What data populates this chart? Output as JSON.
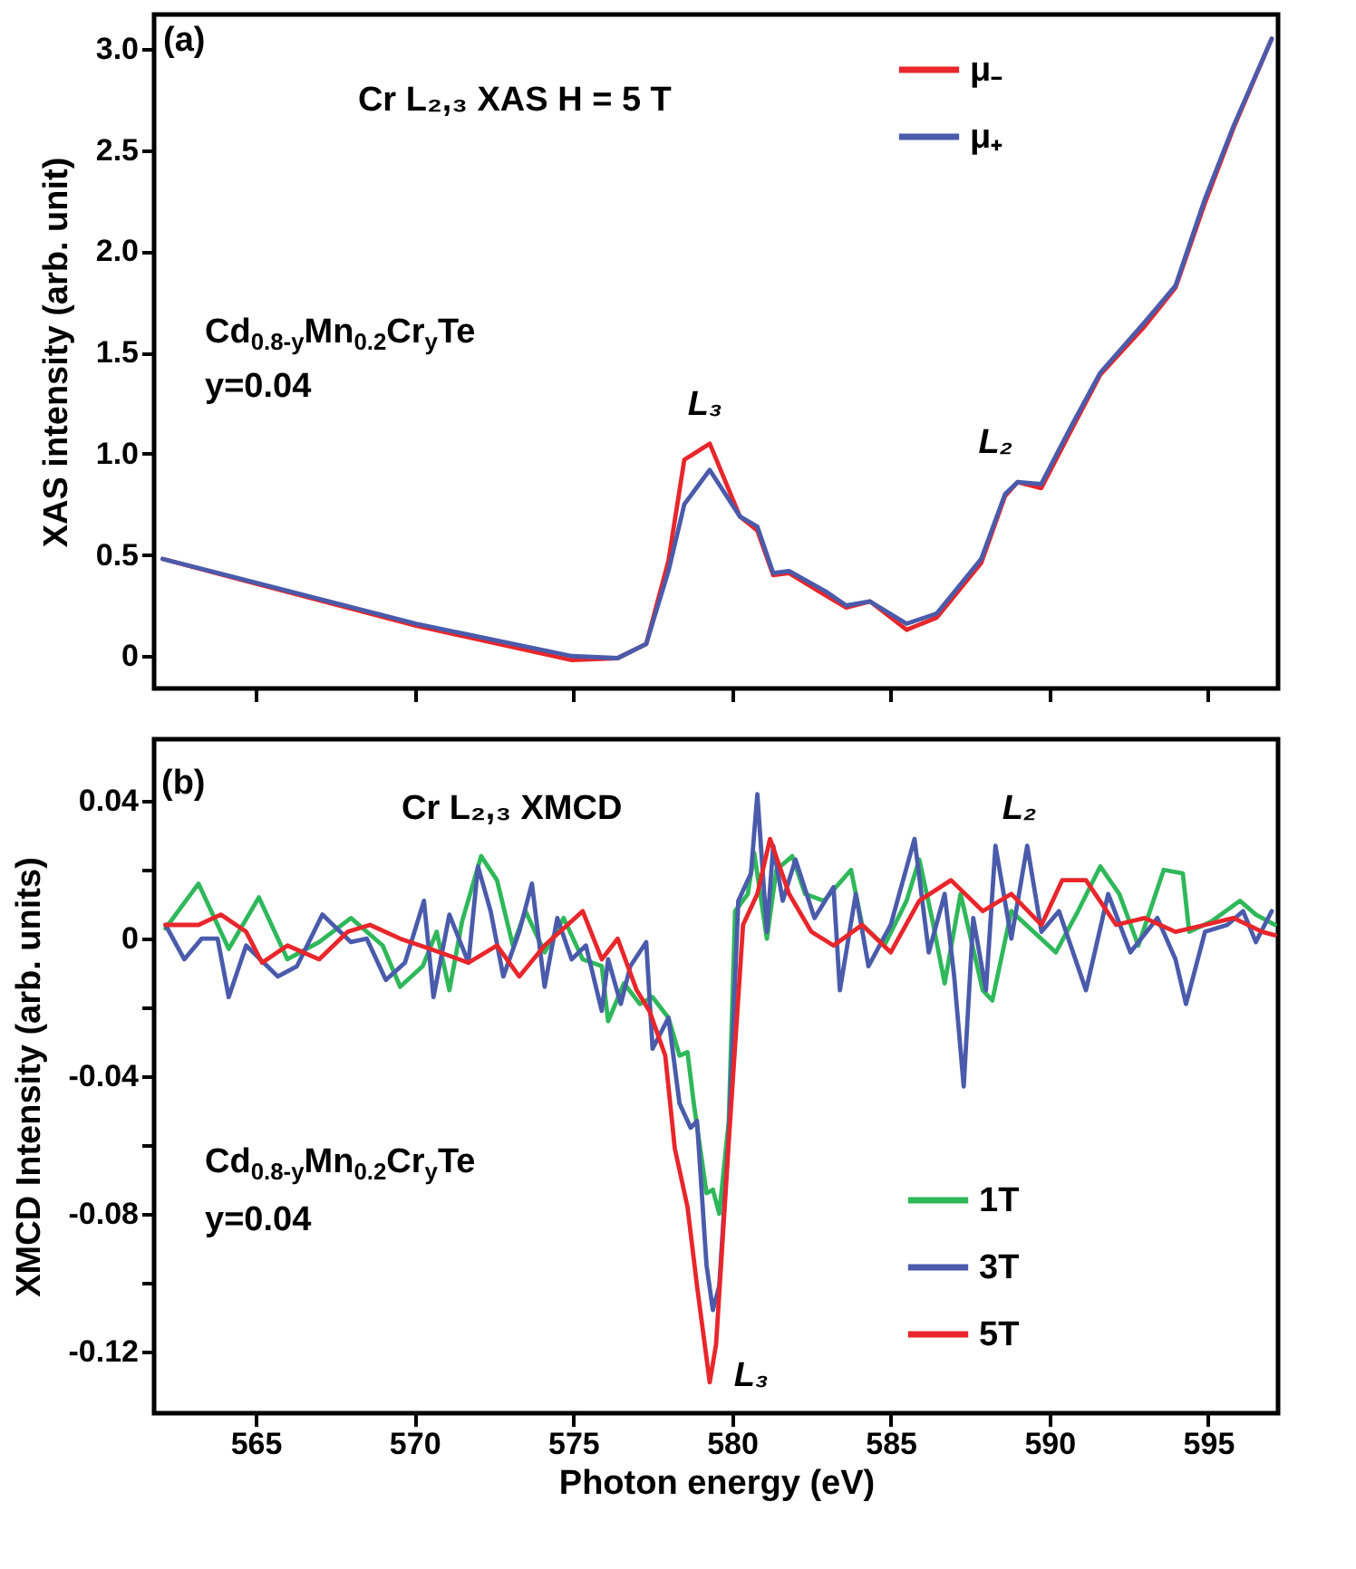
{
  "chart_data": [
    {
      "type": "line",
      "ylabel": "XAS intensity (arb. unit)",
      "xlim": [
        561.8,
        597.2
      ],
      "ylim": [
        -0.16,
        3.17
      ],
      "xticks": [
        565,
        570,
        575,
        580,
        585,
        590,
        595
      ],
      "yticks": [
        0,
        0.5,
        {
          "value": 1,
          "label": "1.0"
        },
        1.5,
        {
          "value": 2,
          "label": "2.0"
        },
        2.5,
        {
          "value": 3,
          "label": "3.0"
        }
      ],
      "tick_labels": "y",
      "legend": "top right",
      "annotations": [
        "(a)",
        "Cr L₂,₃ XAS    H = 5 T",
        "Cd$_{0.8-y}$Mn$_{0.2}$Cr$_{y}$Te",
        "y=0.04",
        {
          "text": "L₃",
          "x": 579.3,
          "y": 1.05
        },
        {
          "text": "L₂",
          "x": 588.8,
          "y": 0.86
        }
      ],
      "series": [
        {
          "name": "μ₋",
          "color": "#e8262b",
          "x": [
            562.07,
            570.05,
            574.96,
            576.4,
            577.3,
            578.0,
            578.5,
            579.3,
            580.25,
            580.8,
            581.3,
            581.8,
            582.95,
            583.6,
            584.35,
            585.5,
            586.45,
            587.85,
            588.6,
            589.0,
            589.74,
            590.7,
            591.6,
            593.0,
            593.97,
            594.9,
            595.8,
            597.0
          ],
          "values": [
            0.48,
            0.15,
            -0.02,
            -0.01,
            0.06,
            0.47,
            0.97,
            1.05,
            0.69,
            0.62,
            0.4,
            0.41,
            0.3,
            0.24,
            0.27,
            0.13,
            0.19,
            0.46,
            0.79,
            0.86,
            0.83,
            1.12,
            1.39,
            1.63,
            1.82,
            2.24,
            2.61,
            3.05
          ]
        },
        {
          "name": "μ₊",
          "color": "#4a5bab",
          "x": [
            562.07,
            570.05,
            574.96,
            576.4,
            577.3,
            578.0,
            578.5,
            579.3,
            580.25,
            580.8,
            581.3,
            581.8,
            582.95,
            583.6,
            584.35,
            585.5,
            586.45,
            587.85,
            588.6,
            589.0,
            589.74,
            590.7,
            591.6,
            593.0,
            593.97,
            594.9,
            595.8,
            597.0
          ],
          "values": [
            0.48,
            0.16,
            0.0,
            -0.01,
            0.06,
            0.42,
            0.75,
            0.92,
            0.69,
            0.64,
            0.41,
            0.42,
            0.32,
            0.25,
            0.27,
            0.16,
            0.21,
            0.48,
            0.8,
            0.86,
            0.85,
            1.14,
            1.4,
            1.65,
            1.83,
            2.26,
            2.62,
            3.05
          ]
        }
      ]
    },
    {
      "type": "line",
      "xlabel": "Photon energy (eV)",
      "ylabel": "XMCD Intensity (arb. units)",
      "xlim": [
        561.8,
        597.2
      ],
      "ylim": [
        -0.138,
        0.058
      ],
      "xticks": [
        565,
        570,
        575,
        580,
        585,
        590,
        595
      ],
      "yticks": [
        0.04,
        {
          "value": 0.02,
          "label": null
        },
        0,
        {
          "value": -0.02,
          "label": null
        },
        -0.04,
        {
          "value": -0.06,
          "label": null
        },
        -0.08,
        {
          "value": -0.1,
          "label": null
        },
        -0.12
      ],
      "legend": "bottom right",
      "annotations": [
        "(b)",
        "Cr L₂,₃ XMCD",
        "Cd$_{0.8-y}$Mn$_{0.2}$Cr$_{y}$Te",
        "y=0.04",
        {
          "text": "L₃",
          "x": 579.5,
          "y": -0.129
        },
        "L₂"
      ],
      "series": [
        {
          "name": "1T",
          "color": "#2fb85a",
          "x": [
            562.16,
            563.2,
            564.15,
            565.1,
            566.0,
            567.0,
            568.0,
            569.0,
            569.55,
            570.26,
            570.7,
            571.1,
            571.5,
            572.1,
            572.6,
            573.1,
            573.5,
            574.1,
            574.7,
            575.3,
            575.9,
            576.1,
            576.6,
            577.1,
            577.5,
            578.0,
            578.35,
            578.6,
            578.8,
            579.2,
            579.4,
            579.6,
            579.9,
            580.1,
            580.5,
            580.7,
            581.1,
            581.4,
            581.9,
            582.3,
            582.9,
            583.75,
            584.1,
            584.8,
            585.5,
            585.9,
            586.3,
            586.7,
            587.2,
            587.9,
            588.2,
            588.8,
            589.5,
            590.2,
            590.9,
            591.6,
            592.2,
            592.8,
            593.6,
            594.2,
            594.4,
            595.1,
            596.0,
            596.5,
            597.1
          ],
          "values": [
            0.003,
            0.016,
            -0.003,
            0.012,
            -0.006,
            -0.001,
            0.006,
            -0.002,
            -0.014,
            -0.008,
            0.002,
            -0.015,
            0.005,
            0.024,
            0.017,
            -0.002,
            0.008,
            -0.004,
            0.006,
            -0.006,
            -0.008,
            -0.024,
            -0.013,
            -0.019,
            -0.017,
            -0.023,
            -0.034,
            -0.033,
            -0.048,
            -0.074,
            -0.073,
            -0.08,
            -0.053,
            0.008,
            0.013,
            0.025,
            0.0,
            0.02,
            0.024,
            0.013,
            0.011,
            0.02,
            0.004,
            -0.002,
            0.011,
            0.023,
            0.006,
            -0.013,
            0.013,
            -0.015,
            -0.018,
            0.008,
            0.002,
            -0.004,
            0.008,
            0.021,
            0.013,
            -0.002,
            0.02,
            0.019,
            0.002,
            0.005,
            0.011,
            0.007,
            0.004
          ]
        },
        {
          "name": "3T",
          "color": "#4a5bab",
          "x": [
            562.16,
            562.75,
            563.3,
            563.8,
            564.15,
            564.7,
            565.7,
            566.3,
            567.1,
            568.0,
            568.5,
            569.1,
            569.7,
            570.3,
            570.6,
            571.1,
            571.7,
            572.0,
            572.4,
            572.8,
            573.3,
            573.7,
            574.1,
            574.5,
            574.95,
            575.4,
            575.9,
            576.1,
            576.5,
            576.8,
            577.3,
            577.5,
            578.0,
            578.35,
            578.7,
            578.9,
            579.2,
            579.4,
            579.6,
            579.9,
            580.2,
            580.6,
            580.8,
            581.1,
            581.3,
            581.6,
            582.0,
            582.6,
            583.2,
            583.4,
            583.9,
            584.3,
            585.0,
            585.75,
            586.2,
            586.7,
            587.0,
            587.3,
            587.6,
            588.0,
            588.3,
            588.8,
            589.3,
            589.75,
            590.3,
            591.15,
            591.85,
            592.55,
            593.4,
            593.97,
            594.3,
            594.9,
            595.6,
            596.1,
            596.5,
            597.0
          ],
          "values": [
            0.004,
            -0.006,
            0.0,
            0.0,
            -0.017,
            -0.002,
            -0.011,
            -0.008,
            0.007,
            -0.001,
            0.0,
            -0.012,
            -0.007,
            0.011,
            -0.017,
            0.007,
            -0.007,
            0.021,
            0.008,
            -0.011,
            0.002,
            0.016,
            -0.014,
            0.006,
            -0.006,
            -0.002,
            -0.021,
            -0.006,
            -0.019,
            -0.008,
            -0.001,
            -0.032,
            -0.023,
            -0.048,
            -0.055,
            -0.053,
            -0.095,
            -0.108,
            -0.101,
            -0.057,
            0.011,
            0.019,
            0.042,
            0.002,
            0.027,
            0.011,
            0.023,
            0.006,
            0.015,
            -0.015,
            0.013,
            -0.008,
            0.004,
            0.029,
            -0.004,
            0.013,
            -0.011,
            -0.043,
            0.006,
            -0.015,
            0.027,
            0.0,
            0.027,
            0.002,
            0.008,
            -0.015,
            0.013,
            -0.004,
            0.006,
            -0.006,
            -0.019,
            0.002,
            0.004,
            0.008,
            -0.001,
            0.008
          ]
        },
        {
          "name": "5T",
          "color": "#e8262b",
          "x": [
            562.16,
            563.2,
            563.9,
            564.7,
            565.2,
            566.0,
            567.0,
            567.9,
            568.6,
            569.55,
            570.5,
            571.7,
            572.6,
            573.3,
            574.1,
            575.3,
            575.9,
            576.4,
            577.0,
            577.4,
            577.9,
            578.2,
            578.6,
            578.9,
            579.3,
            579.5,
            579.9,
            580.35,
            580.8,
            581.2,
            581.8,
            582.5,
            583.2,
            584.1,
            585.0,
            585.9,
            586.9,
            587.9,
            588.8,
            589.75,
            590.4,
            591.15,
            592.1,
            593.0,
            593.97,
            594.9,
            595.8,
            596.7,
            597.1
          ],
          "values": [
            0.004,
            0.004,
            0.007,
            0.002,
            -0.007,
            -0.002,
            -0.006,
            0.002,
            0.004,
            0.0,
            -0.003,
            -0.007,
            -0.002,
            -0.011,
            -0.002,
            0.008,
            -0.006,
            0.0,
            -0.015,
            -0.021,
            -0.034,
            -0.061,
            -0.078,
            -0.101,
            -0.129,
            -0.118,
            -0.059,
            0.004,
            0.013,
            0.029,
            0.013,
            0.002,
            -0.002,
            0.004,
            -0.004,
            0.011,
            0.017,
            0.008,
            0.013,
            0.004,
            0.017,
            0.017,
            0.004,
            0.006,
            0.002,
            0.004,
            0.006,
            0.002,
            0.001
          ]
        }
      ]
    }
  ]
}
